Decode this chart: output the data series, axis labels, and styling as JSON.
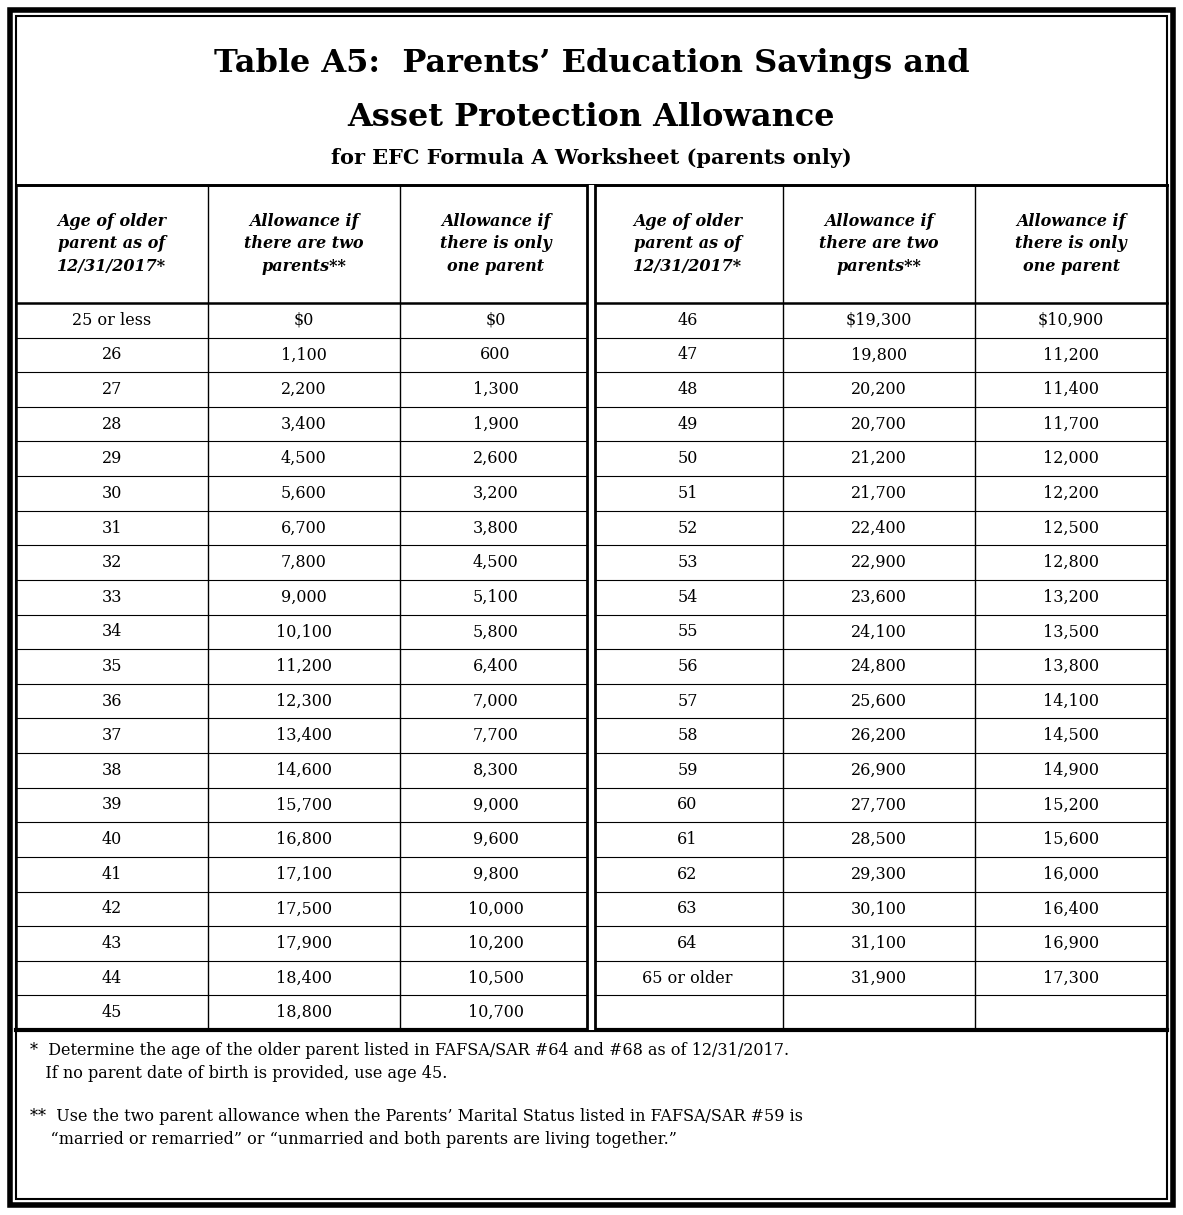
{
  "title_line1": "Table A5:  Parents’ Education Savings and",
  "title_line2": "Asset Protection Allowance",
  "subtitle": "for EFC Formula A Worksheet (parents only)",
  "col_headers": [
    "Age of older\nparent as of\n12/31/2017*",
    "Allowance if\nthere are two\nparents**",
    "Allowance if\nthere is only\none parent",
    "Age of older\nparent as of\n12/31/2017*",
    "Allowance if\nthere are two\nparents**",
    "Allowance if\nthere is only\none parent"
  ],
  "left_data": [
    [
      "25 or less",
      "$0",
      "$0"
    ],
    [
      "26",
      "1,100",
      "600"
    ],
    [
      "27",
      "2,200",
      "1,300"
    ],
    [
      "28",
      "3,400",
      "1,900"
    ],
    [
      "29",
      "4,500",
      "2,600"
    ],
    [
      "30",
      "5,600",
      "3,200"
    ],
    [
      "31",
      "6,700",
      "3,800"
    ],
    [
      "32",
      "7,800",
      "4,500"
    ],
    [
      "33",
      "9,000",
      "5,100"
    ],
    [
      "34",
      "10,100",
      "5,800"
    ],
    [
      "35",
      "11,200",
      "6,400"
    ],
    [
      "36",
      "12,300",
      "7,000"
    ],
    [
      "37",
      "13,400",
      "7,700"
    ],
    [
      "38",
      "14,600",
      "8,300"
    ],
    [
      "39",
      "15,700",
      "9,000"
    ],
    [
      "40",
      "16,800",
      "9,600"
    ],
    [
      "41",
      "17,100",
      "9,800"
    ],
    [
      "42",
      "17,500",
      "10,000"
    ],
    [
      "43",
      "17,900",
      "10,200"
    ],
    [
      "44",
      "18,400",
      "10,500"
    ],
    [
      "45",
      "18,800",
      "10,700"
    ]
  ],
  "right_data": [
    [
      "46",
      "$19,300",
      "$10,900"
    ],
    [
      "47",
      "19,800",
      "11,200"
    ],
    [
      "48",
      "20,200",
      "11,400"
    ],
    [
      "49",
      "20,700",
      "11,700"
    ],
    [
      "50",
      "21,200",
      "12,000"
    ],
    [
      "51",
      "21,700",
      "12,200"
    ],
    [
      "52",
      "22,400",
      "12,500"
    ],
    [
      "53",
      "22,900",
      "12,800"
    ],
    [
      "54",
      "23,600",
      "13,200"
    ],
    [
      "55",
      "24,100",
      "13,500"
    ],
    [
      "56",
      "24,800",
      "13,800"
    ],
    [
      "57",
      "25,600",
      "14,100"
    ],
    [
      "58",
      "26,200",
      "14,500"
    ],
    [
      "59",
      "26,900",
      "14,900"
    ],
    [
      "60",
      "27,700",
      "15,200"
    ],
    [
      "61",
      "28,500",
      "15,600"
    ],
    [
      "62",
      "29,300",
      "16,000"
    ],
    [
      "63",
      "30,100",
      "16,400"
    ],
    [
      "64",
      "31,100",
      "16,900"
    ],
    [
      "65 or older",
      "31,900",
      "17,300"
    ],
    [
      "",
      "",
      ""
    ]
  ],
  "footnote1": "*  Determine the age of the older parent listed in FAFSA/SAR #64 and #68 as of 12/31/2017.\n   If no parent date of birth is provided, use age 45.",
  "footnote2": "**  Use the two parent allowance when the Parents’ Marital Status listed in FAFSA/SAR #59 is\n    “married or remarried” or “unmarried and both parents are living together.”",
  "bg_color": "#ffffff"
}
